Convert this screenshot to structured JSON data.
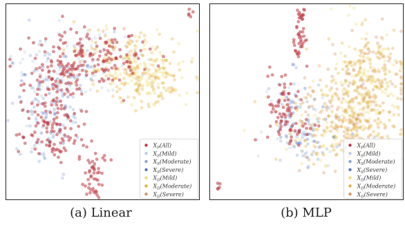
{
  "figure": {
    "panels": [
      {
        "caption": "(a) Linear"
      },
      {
        "caption": "(b) MLP"
      }
    ]
  },
  "legend": {
    "entries": [
      {
        "label": "X_P(All)",
        "main": "X",
        "sub": "P",
        "rest": "(All)",
        "color": "#c0383f"
      },
      {
        "label": "X_S(Mild)",
        "main": "X",
        "sub": "S",
        "rest": "(Mild)",
        "color": "#b9cde6"
      },
      {
        "label": "X_S(Moderate)",
        "main": "X",
        "sub": "S",
        "rest": "(Moderate)",
        "color": "#8aa7d6"
      },
      {
        "label": "X_S(Severe)",
        "main": "X",
        "sub": "S",
        "rest": "(Severe)",
        "color": "#5a78c4"
      },
      {
        "label": "X_D(Mild)",
        "main": "X",
        "sub": "D",
        "rest": "(Mild)",
        "color": "#f2dc7a"
      },
      {
        "label": "X_D(Moderate)",
        "main": "X",
        "sub": "D",
        "rest": "(Moderate)",
        "color": "#e3b23a"
      },
      {
        "label": "X_D(Severe)",
        "main": "X",
        "sub": "D",
        "rest": "(Severe)",
        "color": "#d9925a"
      }
    ]
  },
  "chart_data": [
    {
      "type": "scatter",
      "title": "",
      "caption": "(a) Linear",
      "grid": false,
      "axes_ticks": false,
      "legend_position": "bottom-right",
      "series": [
        {
          "name": "X_P(All)",
          "color": "#c0383f",
          "clusters": [
            {
              "region": "main-body",
              "density": "high"
            },
            {
              "region": "lower-left-lobe",
              "density": "high"
            },
            {
              "region": "bottom-tail",
              "density": "high"
            },
            {
              "region": "top-right-isolated",
              "density": "high"
            }
          ]
        },
        {
          "name": "X_S(Mild)",
          "color": "#b9cde6",
          "clusters": [
            {
              "region": "main-body",
              "density": "low"
            }
          ]
        },
        {
          "name": "X_S(Moderate)",
          "color": "#8aa7d6",
          "clusters": [
            {
              "region": "left-lobe",
              "density": "medium"
            }
          ]
        },
        {
          "name": "X_S(Severe)",
          "color": "#5a78c4",
          "clusters": [
            {
              "region": "left-lobe",
              "density": "low"
            }
          ]
        },
        {
          "name": "X_D(Mild)",
          "color": "#f2dc7a",
          "clusters": [
            {
              "region": "upper-right",
              "density": "medium"
            }
          ]
        },
        {
          "name": "X_D(Moderate)",
          "color": "#e3b23a",
          "clusters": [
            {
              "region": "upper-right",
              "density": "high"
            }
          ]
        },
        {
          "name": "X_D(Severe)",
          "color": "#d9925a",
          "clusters": [
            {
              "region": "upper-middle",
              "density": "low"
            }
          ]
        }
      ]
    },
    {
      "type": "scatter",
      "title": "",
      "caption": "(b) MLP",
      "grid": false,
      "axes_ticks": false,
      "legend_position": "bottom-right",
      "series": [
        {
          "name": "X_P(All)",
          "color": "#c0383f",
          "clusters": [
            {
              "region": "top-vertical-arm",
              "density": "high"
            },
            {
              "region": "left-edge",
              "density": "high"
            },
            {
              "region": "bottom-left-isolated",
              "density": "high"
            }
          ]
        },
        {
          "name": "X_S(Mild)",
          "color": "#b9cde6",
          "clusters": [
            {
              "region": "lower-left",
              "density": "low"
            }
          ]
        },
        {
          "name": "X_S(Moderate)",
          "color": "#8aa7d6",
          "clusters": [
            {
              "region": "left-lower",
              "density": "medium"
            }
          ]
        },
        {
          "name": "X_S(Severe)",
          "color": "#5a78c4",
          "clusters": [
            {
              "region": "left-lower",
              "density": "low"
            }
          ]
        },
        {
          "name": "X_D(Mild)",
          "color": "#f2dc7a",
          "clusters": [
            {
              "region": "right-body",
              "density": "medium"
            }
          ]
        },
        {
          "name": "X_D(Moderate)",
          "color": "#e3b23a",
          "clusters": [
            {
              "region": "right-body",
              "density": "high"
            }
          ]
        },
        {
          "name": "X_D(Severe)",
          "color": "#d9925a",
          "clusters": [
            {
              "region": "right-body",
              "density": "medium"
            }
          ]
        }
      ]
    }
  ]
}
